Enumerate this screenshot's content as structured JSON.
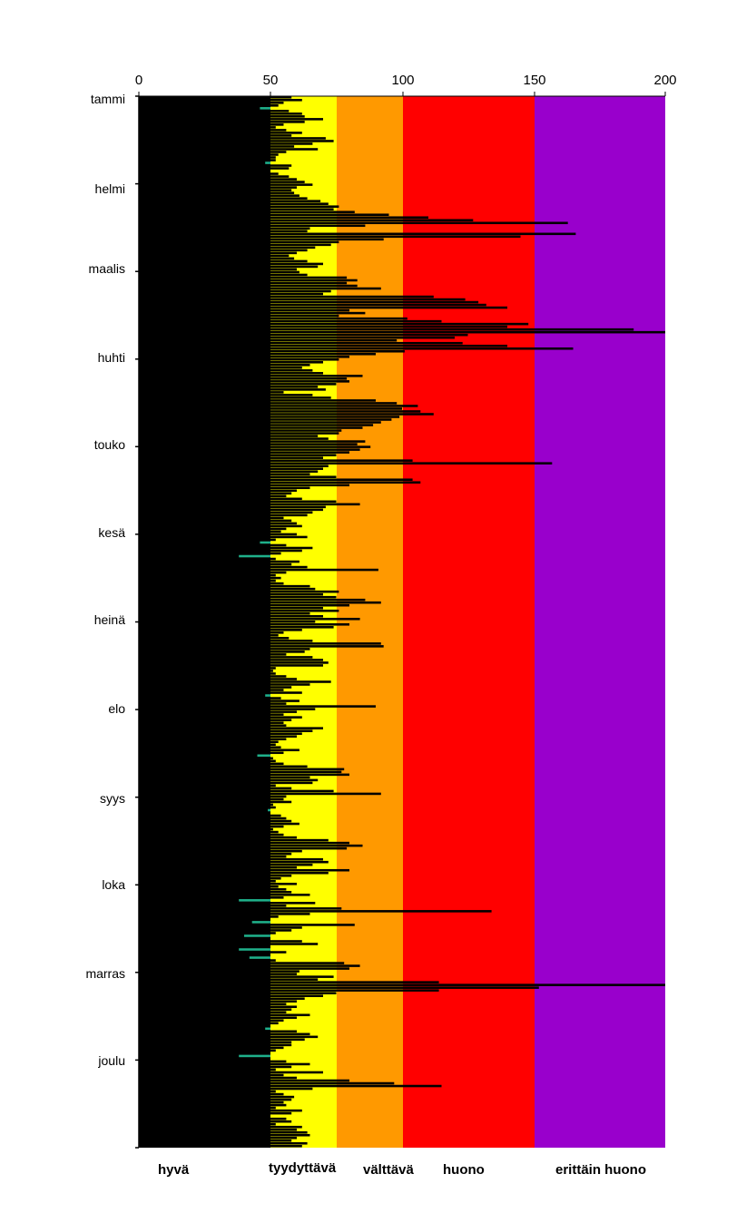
{
  "chart_data": {
    "type": "bar",
    "orientation": "horizontal",
    "xlim": [
      0,
      200
    ],
    "x_ticks": [
      "0",
      "50",
      "100",
      "150",
      "200"
    ],
    "months": [
      "tammi",
      "helmi",
      "maalis",
      "huhti",
      "touko",
      "kesä",
      "heinä",
      "elo",
      "syys",
      "loka",
      "marras",
      "joulu"
    ],
    "bands": [
      {
        "from": 0,
        "to": 50,
        "label": "hyvä",
        "color": "#000000"
      },
      {
        "from": 50,
        "to": 75,
        "label": "tyydyttävä",
        "color": "#ffff00"
      },
      {
        "from": 75,
        "to": 100,
        "label": "välttävä",
        "color": "#ff9900"
      },
      {
        "from": 100,
        "to": 150,
        "label": "huono",
        "color": "#ff0000"
      },
      {
        "from": 150,
        "to": 200,
        "label": "erittäin huono",
        "color": "#9900cc"
      }
    ],
    "low_value_color": "#1fb08a",
    "grid": false,
    "values": [
      58,
      62,
      55,
      53,
      46,
      57,
      62,
      63,
      70,
      63,
      55,
      52,
      56,
      62,
      58,
      71,
      74,
      66,
      59,
      68,
      56,
      53,
      52,
      52,
      48,
      58,
      57,
      50,
      53,
      57,
      60,
      63,
      66,
      60,
      58,
      59,
      61,
      64,
      69,
      72,
      76,
      74,
      82,
      95,
      110,
      127,
      163,
      86,
      65,
      64,
      166,
      145,
      93,
      76,
      73,
      67,
      64,
      60,
      57,
      59,
      64,
      70,
      68,
      60,
      61,
      64,
      79,
      83,
      79,
      83,
      92,
      73,
      70,
      112,
      124,
      129,
      132,
      140,
      80,
      86,
      76,
      102,
      115,
      148,
      140,
      188,
      200,
      125,
      120,
      98,
      123,
      140,
      165,
      101,
      90,
      80,
      76,
      70,
      65,
      62,
      66,
      70,
      85,
      79,
      80,
      75,
      68,
      71,
      55,
      66,
      73,
      90,
      98,
      106,
      100,
      107,
      112,
      99,
      96,
      92,
      89,
      85,
      77,
      76,
      68,
      72,
      86,
      83,
      88,
      84,
      80,
      75,
      70,
      104,
      157,
      72,
      70,
      68,
      65,
      75,
      104,
      107,
      80,
      65,
      60,
      58,
      56,
      62,
      75,
      84,
      71,
      70,
      66,
      64,
      55,
      58,
      60,
      62,
      56,
      54,
      60,
      64,
      52,
      46,
      56,
      66,
      62,
      54,
      38,
      52,
      61,
      58,
      64,
      91,
      56,
      52,
      54,
      52,
      55,
      65,
      67,
      76,
      70,
      75,
      86,
      92,
      80,
      70,
      76,
      65,
      70,
      84,
      67,
      80,
      74,
      62,
      55,
      53,
      57,
      66,
      92,
      93,
      65,
      63,
      56,
      66,
      70,
      72,
      70,
      52,
      51,
      52,
      56,
      60,
      73,
      65,
      58,
      55,
      62,
      48,
      54,
      61,
      56,
      90,
      67,
      60,
      55,
      62,
      58,
      55,
      56,
      70,
      66,
      62,
      60,
      56,
      53,
      52,
      54,
      61,
      55,
      45,
      51,
      52,
      55,
      64,
      78,
      77,
      80,
      65,
      68,
      66,
      52,
      58,
      74,
      92,
      56,
      55,
      58,
      51,
      52,
      49,
      50,
      54,
      56,
      58,
      61,
      55,
      51,
      53,
      55,
      60,
      72,
      80,
      85,
      79,
      62,
      58,
      56,
      70,
      72,
      66,
      60,
      80,
      72,
      58,
      54,
      52,
      60,
      53,
      56,
      58,
      65,
      55,
      38,
      67,
      56,
      77,
      134,
      65,
      53,
      50,
      43,
      82,
      62,
      58,
      52,
      40,
      50,
      62,
      68,
      50,
      38,
      56,
      50,
      42,
      52,
      78,
      84,
      80,
      61,
      60,
      74,
      68,
      114,
      200,
      152,
      114,
      75,
      70,
      63,
      60,
      56,
      60,
      58,
      56,
      65,
      60,
      55,
      53,
      50,
      48,
      60,
      65,
      68,
      63,
      58,
      58,
      55,
      52,
      50,
      38,
      50,
      56,
      65,
      58,
      52,
      70,
      55,
      60,
      80,
      97,
      115,
      66,
      52,
      55,
      59,
      58,
      55,
      56,
      52,
      62,
      58,
      50,
      56,
      58,
      52,
      62,
      60,
      64,
      65,
      60,
      58,
      64,
      62
    ]
  },
  "x_ticks": [
    "0",
    "50",
    "100",
    "150",
    "200"
  ],
  "months": [
    "tammi",
    "helmi",
    "maalis",
    "huhti",
    "touko",
    "kesä",
    "heinä",
    "elo",
    "syys",
    "loka",
    "marras",
    "joulu"
  ],
  "bands": [
    "hyvä",
    "tyydyttävä",
    "välttävä",
    "huono",
    "erittäin huono"
  ],
  "colors": {
    "hyva": "#000000",
    "tyydyttava": "#ffff00",
    "valttava": "#ff9900",
    "huono": "#ff0000",
    "erittain_huono": "#9900cc",
    "low_value": "#1fb08a"
  }
}
